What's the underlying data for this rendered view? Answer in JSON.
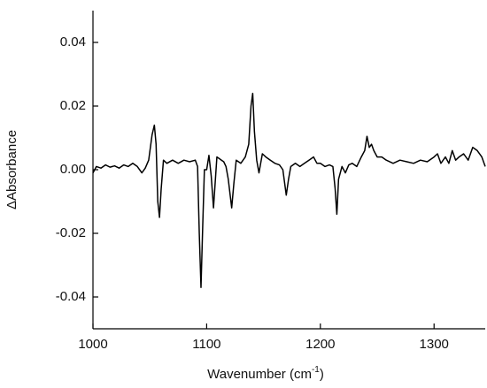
{
  "chart_data": {
    "type": "line",
    "x_label": "Wavenumber (cm",
    "x_label_sup": "-1",
    "x_label_end": ")",
    "y_label": "ΔAbsorbance",
    "xlim": [
      1000,
      1345
    ],
    "xticks": [
      1000,
      1100,
      1200,
      1300
    ],
    "ylim": [
      -0.05,
      0.05
    ],
    "yticks": [
      {
        "value": -0.04,
        "label": "-0.04"
      },
      {
        "value": -0.02,
        "label": "-0.02"
      },
      {
        "value": 0,
        "label": "0.00"
      },
      {
        "value": 0.02,
        "label": "0.02"
      },
      {
        "value": 0.04,
        "label": "0.04"
      }
    ],
    "grid": false,
    "series": [
      {
        "color": "#000000",
        "x": [
          1000,
          1003,
          1007,
          1011,
          1015,
          1019,
          1023,
          1027,
          1031,
          1035,
          1039,
          1043,
          1046,
          1049,
          1052,
          1054,
          1055.5,
          1057,
          1058.5,
          1060,
          1062,
          1065,
          1070,
          1075,
          1080,
          1085,
          1090,
          1092,
          1093.5,
          1095,
          1096.5,
          1098,
          1100,
          1102,
          1104,
          1106,
          1107.5,
          1109,
          1111,
          1113,
          1115,
          1117,
          1119,
          1122,
          1124,
          1126,
          1130,
          1134,
          1137,
          1139,
          1140.5,
          1142,
          1144,
          1146,
          1149,
          1152,
          1156,
          1160,
          1164,
          1167,
          1170,
          1172,
          1174,
          1178,
          1182,
          1186,
          1190,
          1194,
          1197,
          1200,
          1204,
          1208,
          1211,
          1213,
          1214.5,
          1216,
          1219,
          1222,
          1225,
          1228,
          1232,
          1236,
          1239,
          1241,
          1243,
          1245,
          1247,
          1250,
          1254,
          1258,
          1264,
          1270,
          1276,
          1282,
          1288,
          1294,
          1300,
          1303,
          1306,
          1310,
          1313,
          1316,
          1319,
          1322,
          1326,
          1330,
          1334,
          1338,
          1342,
          1345
        ],
        "values": [
          -0.001,
          0.001,
          0.0005,
          0.0015,
          0.0008,
          0.0012,
          0.0005,
          0.0015,
          0.001,
          0.002,
          0.001,
          -0.001,
          0.0005,
          0.003,
          0.011,
          0.014,
          0.008,
          -0.01,
          -0.015,
          -0.006,
          0.003,
          0.002,
          0.003,
          0.002,
          0.003,
          0.0025,
          0.003,
          0.001,
          -0.02,
          -0.037,
          -0.018,
          0.0,
          0.0,
          0.0045,
          -0.002,
          -0.012,
          -0.004,
          0.004,
          0.0035,
          0.003,
          0.0025,
          0.001,
          -0.003,
          -0.012,
          -0.004,
          0.003,
          0.002,
          0.004,
          0.008,
          0.02,
          0.024,
          0.012,
          0.003,
          -0.001,
          0.005,
          0.004,
          0.003,
          0.002,
          0.0015,
          0.0,
          -0.008,
          -0.003,
          0.001,
          0.002,
          0.001,
          0.002,
          0.003,
          0.004,
          0.002,
          0.002,
          0.001,
          0.0015,
          0.001,
          -0.006,
          -0.014,
          -0.003,
          0.001,
          -0.001,
          0.0015,
          0.002,
          0.001,
          0.004,
          0.006,
          0.0105,
          0.007,
          0.008,
          0.006,
          0.004,
          0.004,
          0.003,
          0.002,
          0.003,
          0.0025,
          0.002,
          0.003,
          0.0025,
          0.004,
          0.005,
          0.002,
          0.004,
          0.002,
          0.006,
          0.003,
          0.004,
          0.005,
          0.003,
          0.007,
          0.006,
          0.004,
          0.001
        ]
      }
    ]
  }
}
